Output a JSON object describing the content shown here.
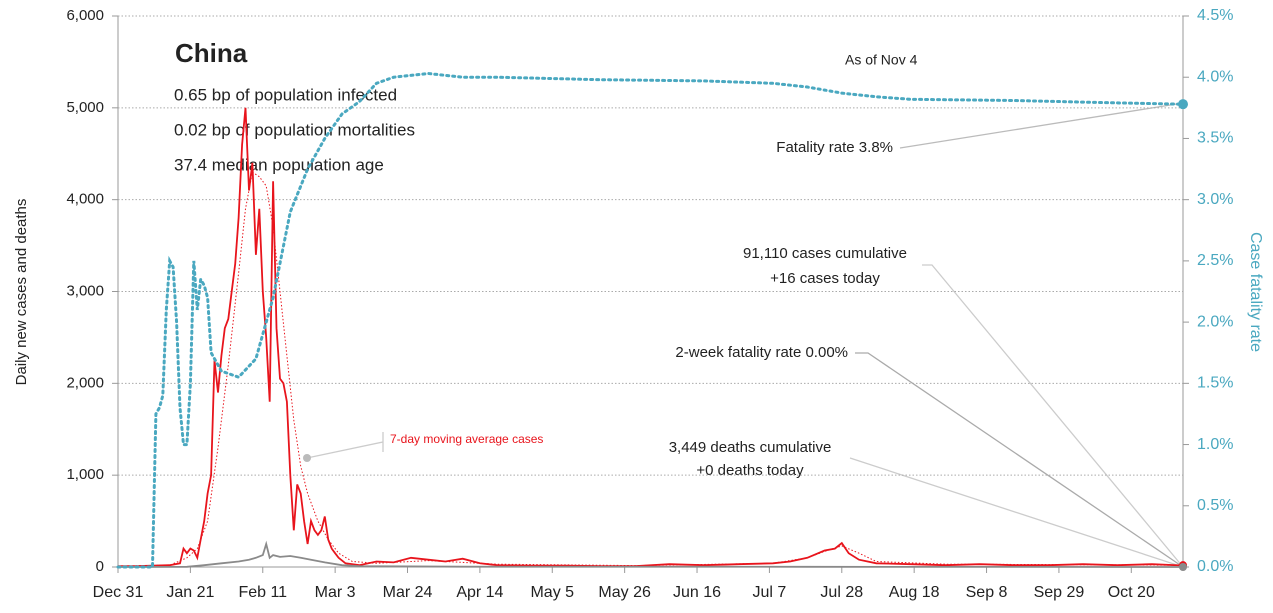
{
  "chart_data": {
    "type": "line",
    "title": "China",
    "subtitle": [
      "0.65 bp of population infected",
      "0.02 bp of population mortalities",
      "37.4 median population age"
    ],
    "date_note": "As of Nov 4",
    "ylabel": "Daily new cases and deaths",
    "y2label": "Case fatality rate",
    "annotations": [
      "Fatality rate 3.8%",
      "91,110 cases cumulative",
      "+16 cases today",
      "2-week fatality rate 0.00%",
      "3,449 deaths cumulative",
      "+0 deaths today",
      "7-day moving average cases"
    ],
    "xlim": [
      0,
      309
    ],
    "xticks": [
      {
        "value": 0,
        "label": "Dec 31"
      },
      {
        "value": 21,
        "label": "Jan 21"
      },
      {
        "value": 42,
        "label": "Feb 11"
      },
      {
        "value": 63,
        "label": "Mar 3"
      },
      {
        "value": 84,
        "label": "Mar 24"
      },
      {
        "value": 105,
        "label": "Apr 14"
      },
      {
        "value": 126,
        "label": "May 5"
      },
      {
        "value": 147,
        "label": "May 26"
      },
      {
        "value": 168,
        "label": "Jun 16"
      },
      {
        "value": 189,
        "label": "Jul 7"
      },
      {
        "value": 210,
        "label": "Jul 28"
      },
      {
        "value": 231,
        "label": "Aug 18"
      },
      {
        "value": 252,
        "label": "Sep 8"
      },
      {
        "value": 273,
        "label": "Sep 29"
      },
      {
        "value": 294,
        "label": "Oct 20"
      }
    ],
    "ylim": [
      0,
      6000
    ],
    "yticks": [
      0,
      {
        "value": 1000,
        "label": "1,000"
      },
      {
        "value": 2000,
        "label": "2,000"
      },
      {
        "value": 3000,
        "label": "3,000"
      },
      {
        "value": 4000,
        "label": "4,000"
      },
      {
        "value": 5000,
        "label": "5,000"
      },
      {
        "value": 6000,
        "label": "6,000"
      }
    ],
    "y2lim": [
      0,
      4.5
    ],
    "y2ticks": [
      {
        "value": 0,
        "label": "0.0%"
      },
      {
        "value": 0.5,
        "label": "0.5%"
      },
      {
        "value": 1,
        "label": "1.0%"
      },
      {
        "value": 1.5,
        "label": "1.5%"
      },
      {
        "value": 2,
        "label": "2.0%"
      },
      {
        "value": 2.5,
        "label": "2.5%"
      },
      {
        "value": 3,
        "label": "3.0%"
      },
      {
        "value": 3.5,
        "label": "3.5%"
      },
      {
        "value": 4,
        "label": "4.0%"
      },
      {
        "value": 4.5,
        "label": "4.5%"
      }
    ],
    "grid": true,
    "series": [
      {
        "color": "#e8141c",
        "style": "solid",
        "x": [
          0,
          5,
          10,
          15,
          18,
          19,
          20,
          21,
          22,
          23,
          24,
          25,
          26,
          27,
          28,
          29,
          30,
          31,
          32,
          33,
          34,
          35,
          36,
          37,
          38,
          39,
          40,
          41,
          42,
          43,
          44,
          45,
          46,
          47,
          48,
          49,
          50,
          51,
          52,
          53,
          54,
          55,
          56,
          57,
          58,
          59,
          60,
          61,
          62,
          63,
          64,
          66,
          70,
          75,
          80,
          85,
          90,
          95,
          100,
          105,
          110,
          120,
          130,
          140,
          150,
          160,
          170,
          180,
          190,
          195,
          200,
          205,
          208,
          210,
          212,
          215,
          220,
          230,
          240,
          250,
          260,
          270,
          280,
          290,
          300,
          309
        ],
        "values": [
          10,
          10,
          15,
          20,
          40,
          200,
          150,
          200,
          180,
          100,
          300,
          500,
          800,
          1000,
          2250,
          1900,
          2300,
          2600,
          2700,
          3000,
          3300,
          3800,
          4600,
          5000,
          4100,
          4400,
          3400,
          3900,
          3000,
          2500,
          1800,
          4200,
          2600,
          2050,
          2000,
          1800,
          1000,
          400,
          900,
          800,
          500,
          250,
          500,
          400,
          350,
          400,
          550,
          300,
          200,
          150,
          100,
          40,
          20,
          60,
          50,
          100,
          80,
          60,
          90,
          40,
          20,
          15,
          15,
          10,
          10,
          30,
          20,
          30,
          40,
          60,
          100,
          180,
          200,
          260,
          150,
          80,
          40,
          30,
          20,
          30,
          20,
          20,
          30,
          20,
          30,
          16
        ]
      },
      {
        "name": "7-day moving average cases",
        "color": "#e8141c",
        "style": "dotted",
        "x": [
          0,
          15,
          20,
          23,
          26,
          29,
          32,
          35,
          37,
          39,
          41,
          43,
          45,
          47,
          49,
          51,
          53,
          55,
          58,
          61,
          64,
          68,
          75,
          90,
          110,
          150,
          190,
          200,
          205,
          210,
          215,
          220,
          240,
          280,
          309
        ],
        "values": [
          10,
          20,
          100,
          200,
          500,
          1300,
          2200,
          3200,
          3900,
          4300,
          4250,
          4150,
          3700,
          3000,
          2300,
          1600,
          1100,
          800,
          500,
          300,
          150,
          60,
          40,
          70,
          30,
          15,
          40,
          100,
          170,
          230,
          150,
          60,
          30,
          25,
          20
        ]
      },
      {
        "color": "#8a8a8a",
        "style": "solid",
        "x": [
          0,
          20,
          25,
          30,
          35,
          38,
          40,
          42,
          43,
          44,
          45,
          47,
          50,
          53,
          56,
          60,
          65,
          70,
          100,
          200,
          309
        ],
        "values": [
          0,
          2,
          20,
          40,
          60,
          80,
          100,
          130,
          250,
          100,
          130,
          110,
          120,
          100,
          80,
          50,
          20,
          10,
          3,
          2,
          0
        ]
      },
      {
        "color": "#4aa8c0",
        "style": "dotted-thick",
        "axis": "y2",
        "x": [
          0,
          10,
          11,
          12,
          13,
          14,
          15,
          16,
          17,
          18,
          19,
          20,
          21,
          22,
          23,
          24,
          25,
          26,
          27,
          30,
          35,
          40,
          45,
          50,
          55,
          60,
          65,
          70,
          75,
          80,
          90,
          100,
          110,
          140,
          170,
          190,
          200,
          210,
          220,
          230,
          260,
          290,
          309
        ],
        "values": [
          0,
          0,
          1.25,
          1.3,
          1.4,
          2.1,
          2.5,
          2.45,
          2.0,
          1.3,
          1.0,
          1.0,
          1.5,
          2.5,
          2.1,
          2.35,
          2.3,
          2.2,
          1.75,
          1.6,
          1.55,
          1.7,
          2.2,
          2.9,
          3.25,
          3.5,
          3.7,
          3.8,
          3.95,
          4.0,
          4.03,
          4.0,
          4.0,
          3.98,
          3.97,
          3.95,
          3.92,
          3.87,
          3.84,
          3.82,
          3.81,
          3.79,
          3.78
        ]
      }
    ]
  }
}
